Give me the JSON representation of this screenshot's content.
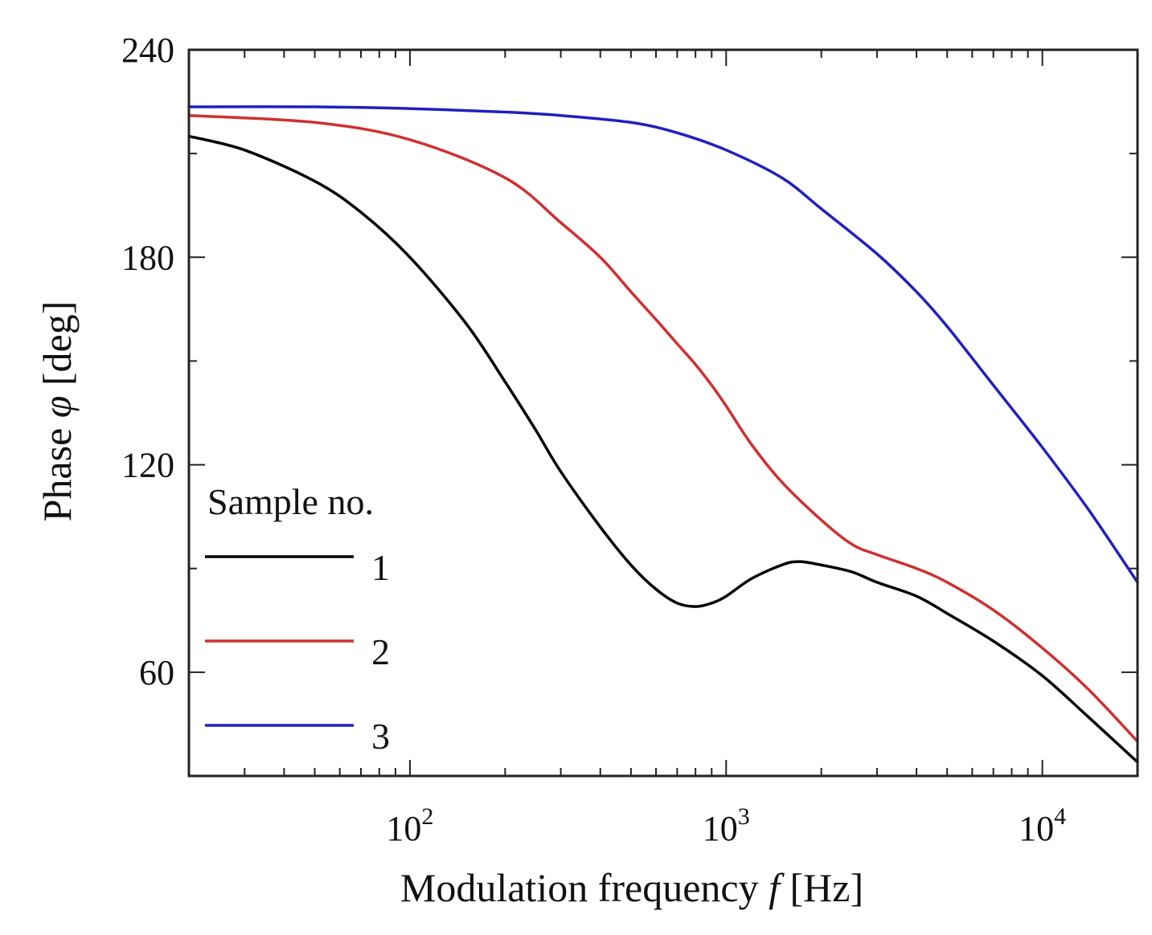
{
  "chart_data": {
    "type": "line",
    "xlabel": {
      "prefix": "Modulation frequency ",
      "var": "f",
      "suffix": " [Hz]"
    },
    "ylabel": {
      "prefix": "Phase ",
      "var": "φ",
      "suffix": " [deg]"
    },
    "x_scale": "log",
    "xlim": [
      20,
      20000
    ],
    "ylim": [
      30,
      240
    ],
    "x_ticks": [
      {
        "base": "10",
        "exp": "2",
        "value": 100
      },
      {
        "base": "10",
        "exp": "3",
        "value": 1000
      },
      {
        "base": "10",
        "exp": "4",
        "value": 10000
      }
    ],
    "y_ticks": [
      {
        "label": "60",
        "value": 60
      },
      {
        "label": "120",
        "value": 120
      },
      {
        "label": "180",
        "value": 180
      },
      {
        "label": "240",
        "value": 240
      }
    ],
    "grid": false,
    "legend": {
      "title": "Sample no.",
      "position": "bottom-left"
    },
    "series": [
      {
        "name": "1",
        "color": "#000000",
        "x": [
          20,
          30,
          50,
          70,
          100,
          150,
          200,
          250,
          300,
          400,
          500,
          600,
          700,
          800,
          900,
          1000,
          1200,
          1500,
          1700,
          2000,
          2500,
          3000,
          4000,
          5000,
          7000,
          10000,
          14000,
          20000
        ],
        "y": [
          215,
          211,
          202,
          193,
          180,
          161,
          144,
          130,
          118,
          102,
          91,
          84,
          80,
          79,
          80,
          82,
          87,
          91,
          92,
          91,
          89,
          86,
          82,
          77,
          69,
          59,
          47,
          34
        ]
      },
      {
        "name": "2",
        "color": "#d03030",
        "x": [
          20,
          50,
          100,
          200,
          300,
          400,
          500,
          600,
          700,
          800,
          900,
          1000,
          1200,
          1500,
          2000,
          2500,
          3000,
          4000,
          5000,
          7000,
          10000,
          14000,
          20000
        ],
        "y": [
          221,
          219,
          214,
          203,
          190,
          180,
          170,
          162,
          155,
          149,
          143,
          137,
          126,
          115,
          104,
          97,
          94,
          90,
          86,
          78,
          67,
          55,
          40
        ]
      },
      {
        "name": "3",
        "color": "#2020c0",
        "x": [
          20,
          50,
          100,
          200,
          300,
          500,
          700,
          1000,
          1500,
          2000,
          3000,
          4000,
          5000,
          7000,
          10000,
          14000,
          20000
        ],
        "y": [
          223.5,
          223.5,
          223,
          222,
          221,
          219,
          216,
          211,
          203,
          194,
          181,
          170,
          160,
          143,
          125,
          107,
          86
        ]
      }
    ]
  }
}
